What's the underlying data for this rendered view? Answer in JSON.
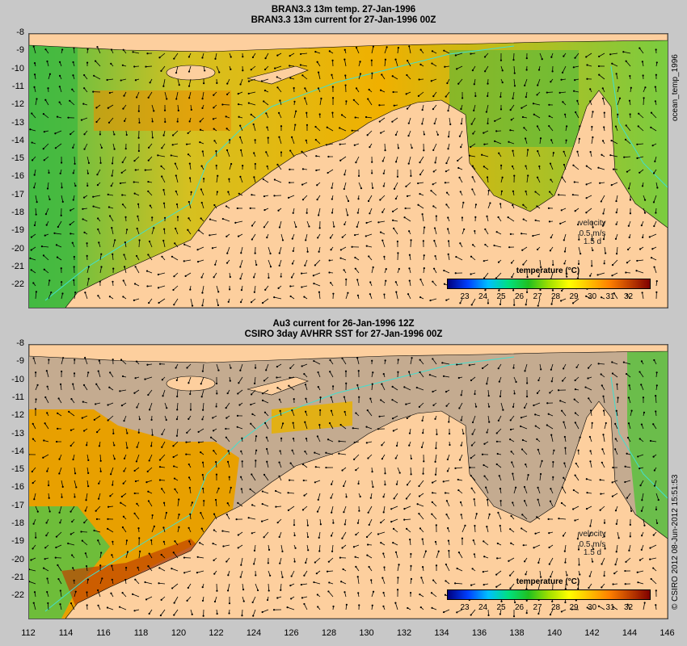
{
  "top_panel": {
    "title_line1": "BRAN3.3 13m temp. 27-Jan-1996",
    "title_line2": "BRAN3.3 13m current for 27-Jan-1996 00Z",
    "velocity_label": "velocity",
    "velocity_speed": "0.5 m/s",
    "velocity_time": "1.5 d",
    "colorbar_title": "temperature (°C)",
    "side_label": "ocean_temp_1996"
  },
  "bottom_panel": {
    "title_line1": "Au3 current for 26-Jan-1996 12Z",
    "title_line2": "CSIRO 3day AVHRR SST for 27-Jan-1996 00Z",
    "velocity_label": "velocity",
    "velocity_speed": "0.5 m/s",
    "velocity_time": "1.5 d",
    "colorbar_title": "temperature (°C)",
    "side_label": "© CSIRO 2012  08-Jun-2012 15:51:53"
  },
  "axes": {
    "y_ticks": [
      "-8",
      "-9",
      "-10",
      "-11",
      "-12",
      "-13",
      "-14",
      "-15",
      "-16",
      "-17",
      "-18",
      "-19",
      "-20",
      "-21",
      "-22"
    ],
    "x_ticks": [
      "112",
      "114",
      "116",
      "118",
      "120",
      "122",
      "124",
      "126",
      "128",
      "130",
      "132",
      "134",
      "136",
      "138",
      "140",
      "142",
      "144",
      "146"
    ]
  },
  "colorbar": {
    "ticks": [
      "23",
      "24",
      "25",
      "26",
      "27",
      "28",
      "29",
      "30",
      "31",
      "32"
    ],
    "colors": [
      "#00007f",
      "#0040ff",
      "#00c0ff",
      "#00e080",
      "#20c020",
      "#a0e000",
      "#ffff00",
      "#ffc000",
      "#ff8000",
      "#c04000",
      "#800000"
    ]
  },
  "colors": {
    "land": "#fdcf9e",
    "no_data": "#c4ab90",
    "bathymetry_line": "#40e0d0",
    "warm_ocean": "#e8b000",
    "green_ocean": "#5cc83a"
  }
}
